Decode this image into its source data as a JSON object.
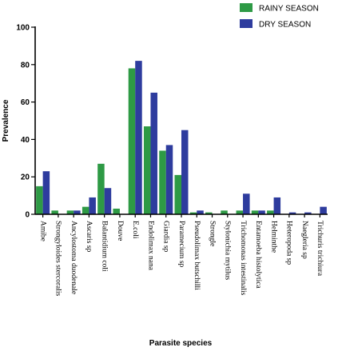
{
  "chart_data": {
    "type": "bar",
    "xlabel": "Parasite species",
    "ylabel": "Prevalence",
    "ylim": [
      0,
      100
    ],
    "yticks": [
      0,
      20,
      40,
      60,
      80,
      100
    ],
    "grid": false,
    "legend_position": "top-right",
    "categories": [
      "Amibe",
      "Strongyloides stercoralis",
      "Ancylostoma duodenale",
      "Ascaris sp",
      "Balantidium coli",
      "Douve",
      "E.coli",
      "Endolimax nana",
      "Giardia sp",
      "Paramecium sp",
      "Pseudolimax butschilli",
      "Strongle",
      "Stylonichia mytilus",
      "Trichomonas intestinalis",
      "Entamoeba histolytica",
      "Helminthe",
      "Heteropoda sp",
      "Naegleria sp",
      "Trichuris trichiura"
    ],
    "series": [
      {
        "name": "RAINY SEASON",
        "color": "#2e9a45",
        "values": [
          15,
          2,
          2,
          4,
          27,
          3,
          78,
          47,
          34,
          21,
          1,
          1,
          2,
          2,
          2,
          2,
          0,
          0,
          0
        ]
      },
      {
        "name": "DRY SEASON",
        "color": "#2e3c9e",
        "values": [
          23,
          0,
          2,
          9,
          14,
          0,
          82,
          65,
          37,
          45,
          2,
          0,
          0,
          11,
          2,
          9,
          1,
          1,
          4
        ]
      }
    ]
  }
}
